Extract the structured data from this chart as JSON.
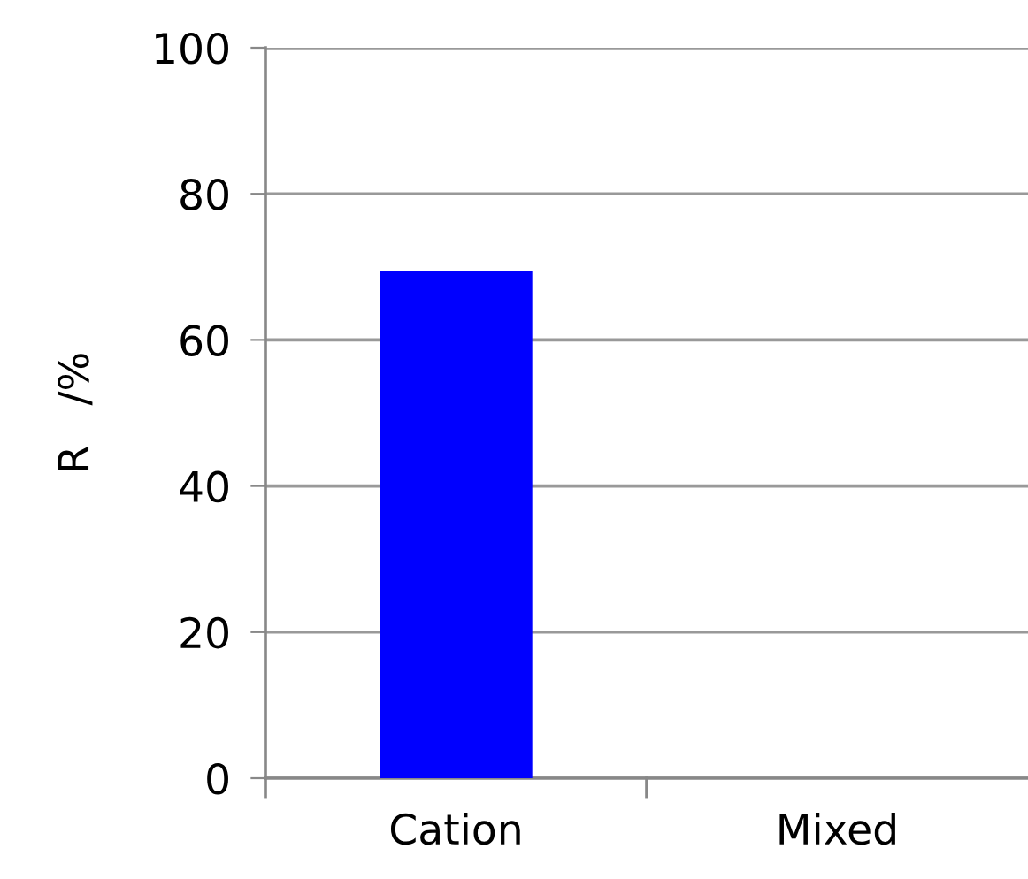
{
  "chart_data": {
    "type": "bar",
    "ylabel": "R   /%",
    "categories": [
      "Cation",
      "Mixed"
    ],
    "values": [
      69.5,
      0
    ],
    "color": "#0000ff",
    "ylim": [
      0,
      100
    ],
    "yticks": [
      0,
      20,
      40,
      60,
      80,
      100
    ],
    "grid": "y"
  }
}
